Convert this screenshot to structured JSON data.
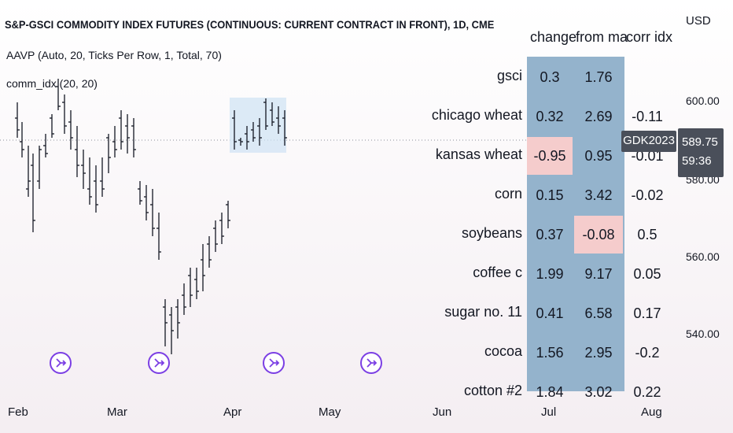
{
  "header": {
    "title": "S&P-GSCI COMMODITY INDEX FUTURES (CONTINUOUS: CURRENT CONTRACT IN FRONT), 1D, CME",
    "indicators": [
      "AAVP (Auto, 20, Ticks Per Row, 1, Total, 70)",
      "comm_idx (20, 20)"
    ]
  },
  "price_axis": {
    "currency": "USD",
    "labels": [
      "600.00",
      "580.00",
      "560.00",
      "540.00"
    ],
    "last_price": "589.75",
    "countdown": "59:36",
    "symbol": "GDK2023"
  },
  "time_axis": {
    "labels": [
      "Feb",
      "Mar",
      "Apr",
      "May",
      "Jun",
      "Jul",
      "Aug"
    ]
  },
  "table": {
    "headers": [
      "change",
      "from ma",
      "corr idx"
    ],
    "rows": [
      {
        "name": "gsci",
        "change": "0.3",
        "from_ma": "1.76",
        "corr": ""
      },
      {
        "name": "chicago wheat",
        "change": "0.32",
        "from_ma": "2.69",
        "corr": "-0.11"
      },
      {
        "name": "kansas wheat",
        "change": "-0.95",
        "from_ma": "0.95",
        "corr": "-0.01"
      },
      {
        "name": "corn",
        "change": "0.15",
        "from_ma": "3.42",
        "corr": "-0.02"
      },
      {
        "name": "soybeans",
        "change": "0.37",
        "from_ma": "-0.08",
        "corr": "0.5"
      },
      {
        "name": "coffee c",
        "change": "1.99",
        "from_ma": "9.17",
        "corr": "0.05"
      },
      {
        "name": "sugar no. 11",
        "change": "0.41",
        "from_ma": "6.58",
        "corr": "0.17"
      },
      {
        "name": "cocoa",
        "change": "1.56",
        "from_ma": "2.95",
        "corr": "-0.2"
      },
      {
        "name": "cotton #2",
        "change": "1.84",
        "from_ma": "3.02",
        "corr": "0.22"
      }
    ]
  },
  "events": [
    "event-1",
    "event-2",
    "event-3",
    "event-4"
  ],
  "colors": {
    "accent": "#7b3fe4",
    "table_bg": "#94b3cc",
    "neg_bg": "#f5cccc",
    "tag_bg": "#4a4f5a"
  }
}
